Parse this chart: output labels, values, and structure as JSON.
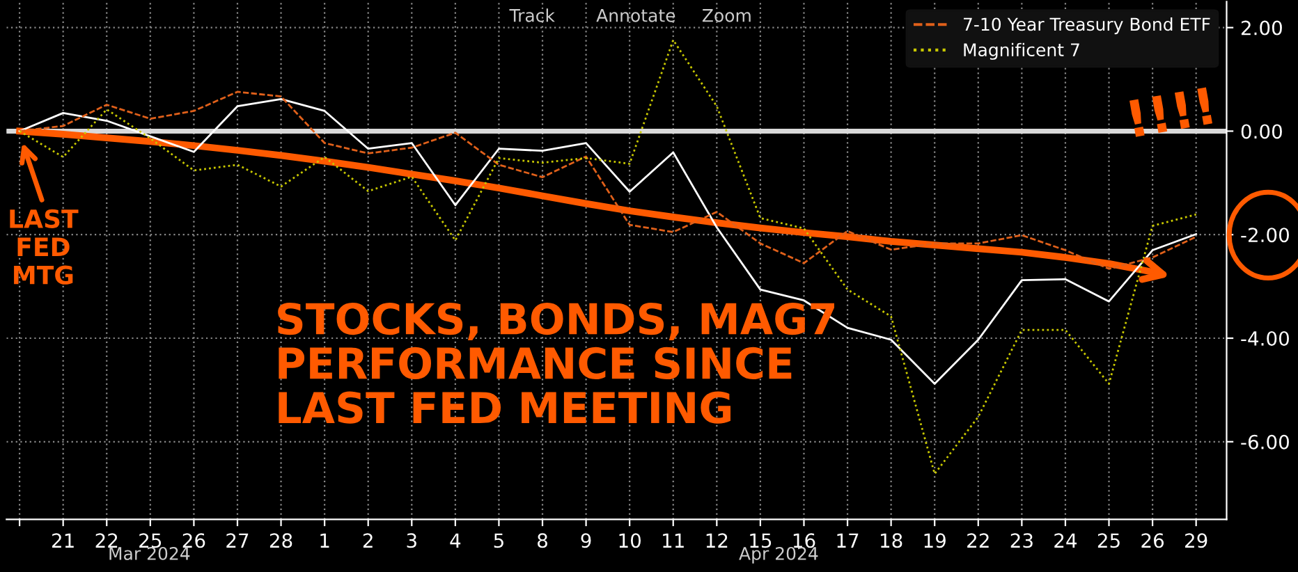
{
  "chart_data": {
    "type": "line",
    "categories": [
      null,
      "21",
      "22",
      "25",
      "26",
      "27",
      "28",
      "1",
      "2",
      "3",
      "4",
      "5",
      "8",
      "9",
      "10",
      "11",
      "12",
      "15",
      "16",
      "17",
      "18",
      "19",
      "22",
      "23",
      "24",
      "25",
      "26",
      "29"
    ],
    "series": [
      {
        "color": "#ffffff",
        "line_style": "solid",
        "values": [
          0,
          0.35,
          0.2,
          -0.1,
          -0.4,
          0.48,
          0.62,
          0.39,
          -0.34,
          -0.23,
          -1.43,
          -0.34,
          -0.38,
          -0.23,
          -1.17,
          -0.41,
          -1.86,
          -3.06,
          -3.27,
          -3.8,
          -4.03,
          -4.88,
          -4.03,
          -2.88,
          -2.86,
          -3.29,
          -2.3,
          -1.99
        ]
      },
      {
        "name": "7-10 Year Treasury Bond ETF",
        "color": "#e0601a",
        "line_style": "dashed",
        "values": [
          0,
          0.1,
          0.51,
          0.24,
          0.39,
          0.76,
          0.67,
          -0.23,
          -0.43,
          -0.32,
          -0.03,
          -0.65,
          -0.89,
          -0.49,
          -1.81,
          -1.95,
          -1.56,
          -2.17,
          -2.55,
          -1.93,
          -2.29,
          -2.17,
          -2.17,
          -2.01,
          -2.3,
          -2.66,
          -2.44,
          -2.04
        ]
      },
      {
        "name": "Magnificent 7",
        "color": "#c8c800",
        "line_style": "dotted",
        "values": [
          0,
          -0.5,
          0.42,
          -0.14,
          -0.76,
          -0.65,
          -1.07,
          -0.5,
          -1.16,
          -0.88,
          -2.11,
          -0.52,
          -0.61,
          -0.52,
          -0.63,
          1.76,
          0.48,
          -1.68,
          -1.88,
          -3.06,
          -3.58,
          -6.62,
          -5.52,
          -3.84,
          -3.84,
          -4.88,
          -1.83,
          -1.61
        ]
      },
      {
        "color": "#ff5a00",
        "line_style": "solid",
        "values": [
          0,
          -0.06,
          -0.13,
          -0.2,
          -0.28,
          -0.37,
          -0.47,
          -0.58,
          -0.7,
          -0.83,
          -0.96,
          -1.1,
          -1.25,
          -1.4,
          -1.54,
          -1.66,
          -1.77,
          -1.87,
          -1.96,
          -2.04,
          -2.13,
          -2.2,
          -2.27,
          -2.34,
          -2.44,
          -2.56,
          -2.72,
          null
        ]
      }
    ],
    "ylim": [
      -7.5,
      2.5
    ],
    "yticks": [
      {
        "value": 2,
        "label": "2.00"
      },
      {
        "value": 0,
        "label": "0.00"
      },
      {
        "value": -2,
        "label": "-2.00"
      },
      {
        "value": -4,
        "label": "-4.00"
      },
      {
        "value": -6,
        "label": "-6.00"
      }
    ],
    "ref_lines": [
      {
        "axis": "y",
        "value": 0,
        "color": "#d9d9d9"
      }
    ],
    "grid": true,
    "legend": "top right",
    "annotations": [
      "Track",
      "Annotate",
      "Zoom",
      "Mar 2024",
      "Apr 2024",
      "LAST\nFED\nMTG",
      "STOCKS, BONDS, MAG7\nPERFORMANCE SINCE\nLAST FED MEETING",
      "!!!!"
    ]
  }
}
